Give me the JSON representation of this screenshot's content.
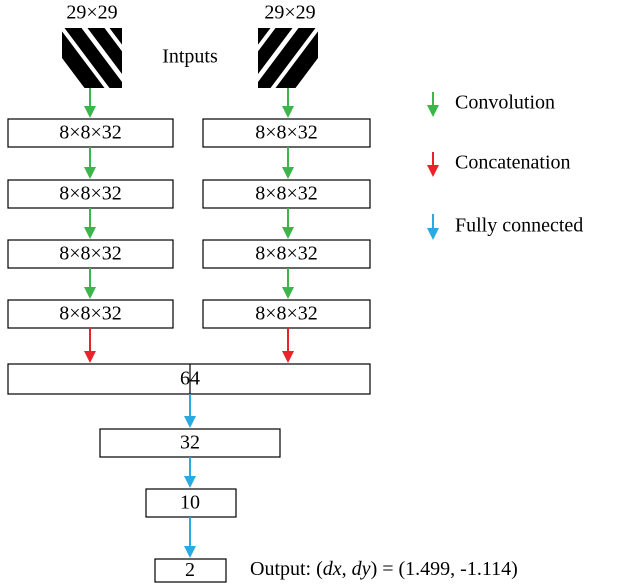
{
  "inputs": {
    "label": "Intputs",
    "sizes": [
      "29×29",
      "29×29"
    ]
  },
  "columns": [
    {
      "layers": [
        "8×8×32",
        "8×8×32",
        "8×8×32",
        "8×8×32"
      ]
    },
    {
      "layers": [
        "8×8×32",
        "8×8×32",
        "8×8×32",
        "8×8×32"
      ]
    }
  ],
  "merged": {
    "layers": [
      "64",
      "32",
      "10",
      "2"
    ]
  },
  "legend": [
    "Convolution",
    "Concatenation",
    "Fully connected"
  ],
  "output": [
    "Output: (",
    "dx",
    ", ",
    "dy",
    ") = (1.499, -1.114)"
  ]
}
